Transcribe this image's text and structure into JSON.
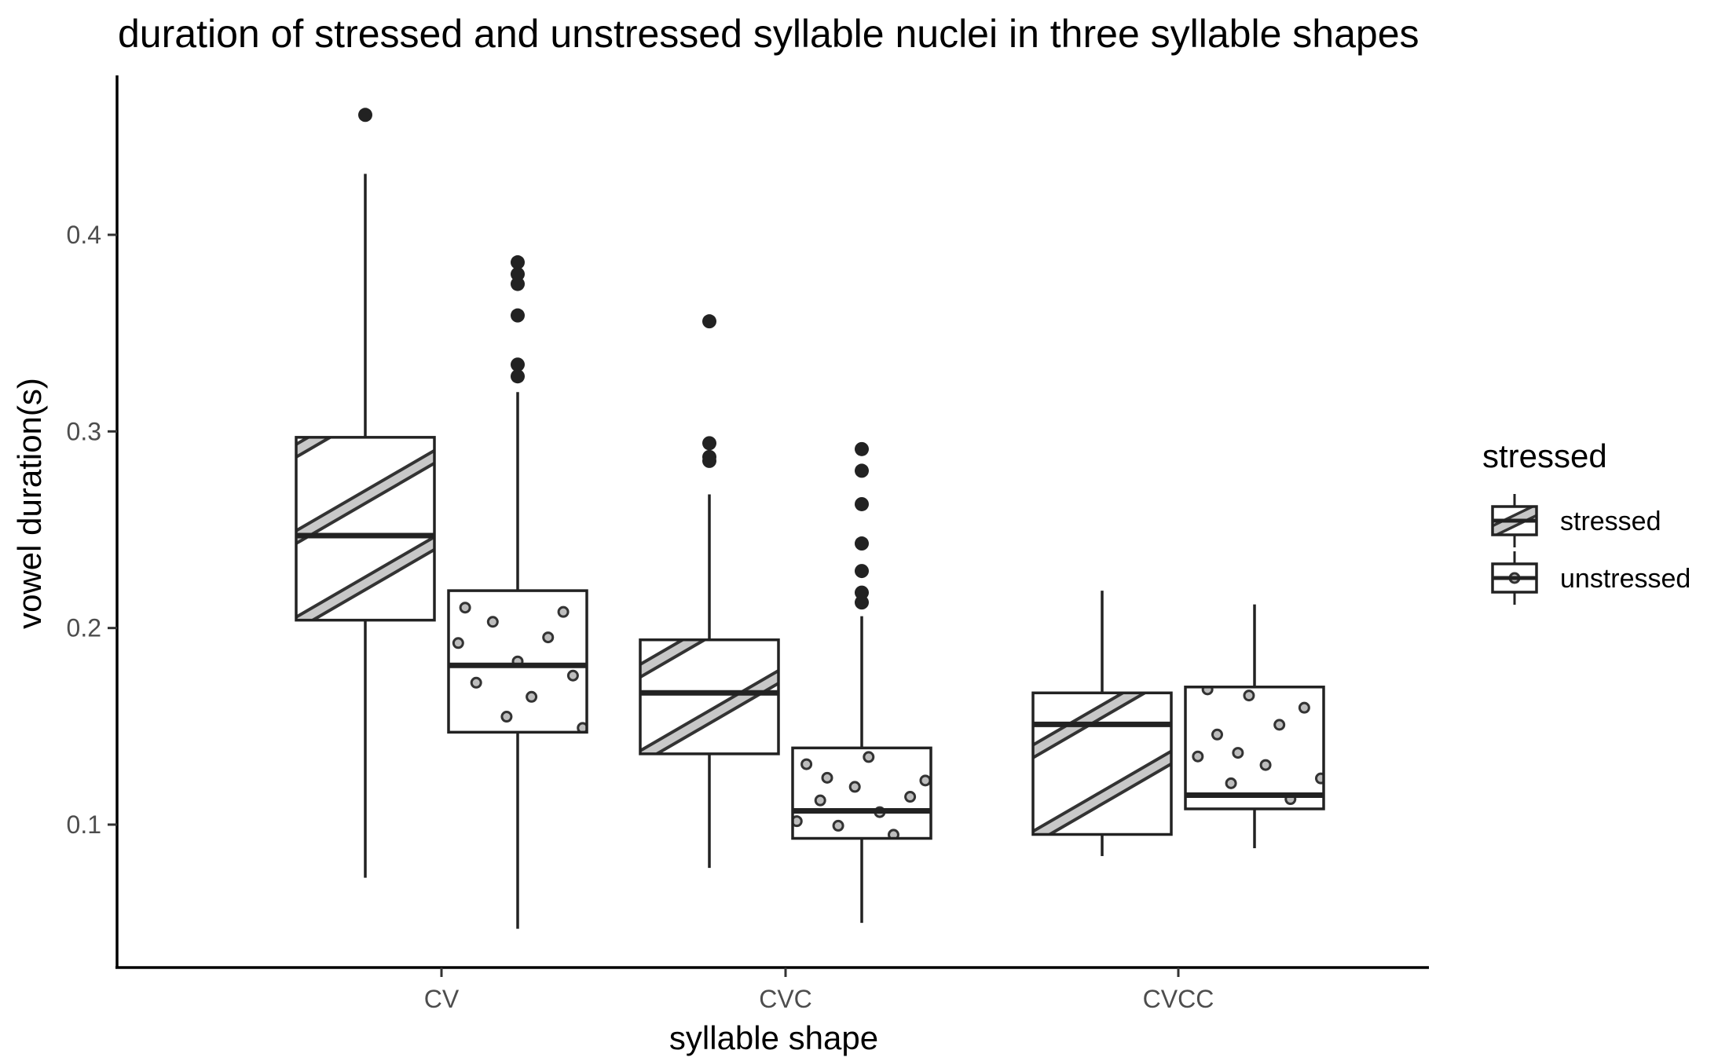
{
  "chart_data": {
    "type": "box",
    "title": "duration of stressed and unstressed syllable nuclei in three syllable shapes",
    "xlabel": "syllable shape",
    "ylabel": "vowel duration(s)",
    "categories": [
      "CV",
      "CVC",
      "CVCC"
    ],
    "ylim": [
      0.025,
      0.477
    ],
    "yticks": [
      0.1,
      0.2,
      0.3,
      0.4
    ],
    "ytick_labels": [
      "0.1",
      "0.2",
      "0.3",
      "0.4"
    ],
    "grid": false,
    "legend": {
      "title": "stressed",
      "position": "right",
      "entries": [
        {
          "label": "stressed",
          "pattern": "stripe"
        },
        {
          "label": "unstressed",
          "pattern": "dots"
        }
      ]
    },
    "series": [
      {
        "pattern": "stripe",
        "boxes": [
          {
            "category": "CV",
            "whisker_low": 0.073,
            "q1": 0.204,
            "median": 0.247,
            "q3": 0.297,
            "whisker_high": 0.431,
            "outliers": [
              0.461
            ]
          },
          {
            "category": "CVC",
            "whisker_low": 0.078,
            "q1": 0.136,
            "median": 0.167,
            "q3": 0.194,
            "whisker_high": 0.268,
            "outliers": [
              0.285,
              0.287,
              0.294,
              0.356
            ]
          },
          {
            "category": "CVCC",
            "whisker_low": 0.084,
            "q1": 0.095,
            "median": 0.151,
            "q3": 0.167,
            "whisker_high": 0.219,
            "outliers": []
          }
        ]
      },
      {
        "pattern": "dots",
        "boxes": [
          {
            "category": "CV",
            "whisker_low": 0.047,
            "q1": 0.147,
            "median": 0.181,
            "q3": 0.219,
            "whisker_high": 0.32,
            "outliers": [
              0.328,
              0.334,
              0.359,
              0.375,
              0.38,
              0.386
            ]
          },
          {
            "category": "CVC",
            "whisker_low": 0.05,
            "q1": 0.093,
            "median": 0.107,
            "q3": 0.139,
            "whisker_high": 0.206,
            "outliers": [
              0.213,
              0.218,
              0.229,
              0.243,
              0.263,
              0.28,
              0.291
            ]
          },
          {
            "category": "CVCC",
            "whisker_low": 0.088,
            "q1": 0.108,
            "median": 0.115,
            "q3": 0.17,
            "whisker_high": 0.212,
            "outliers": []
          }
        ]
      }
    ]
  }
}
